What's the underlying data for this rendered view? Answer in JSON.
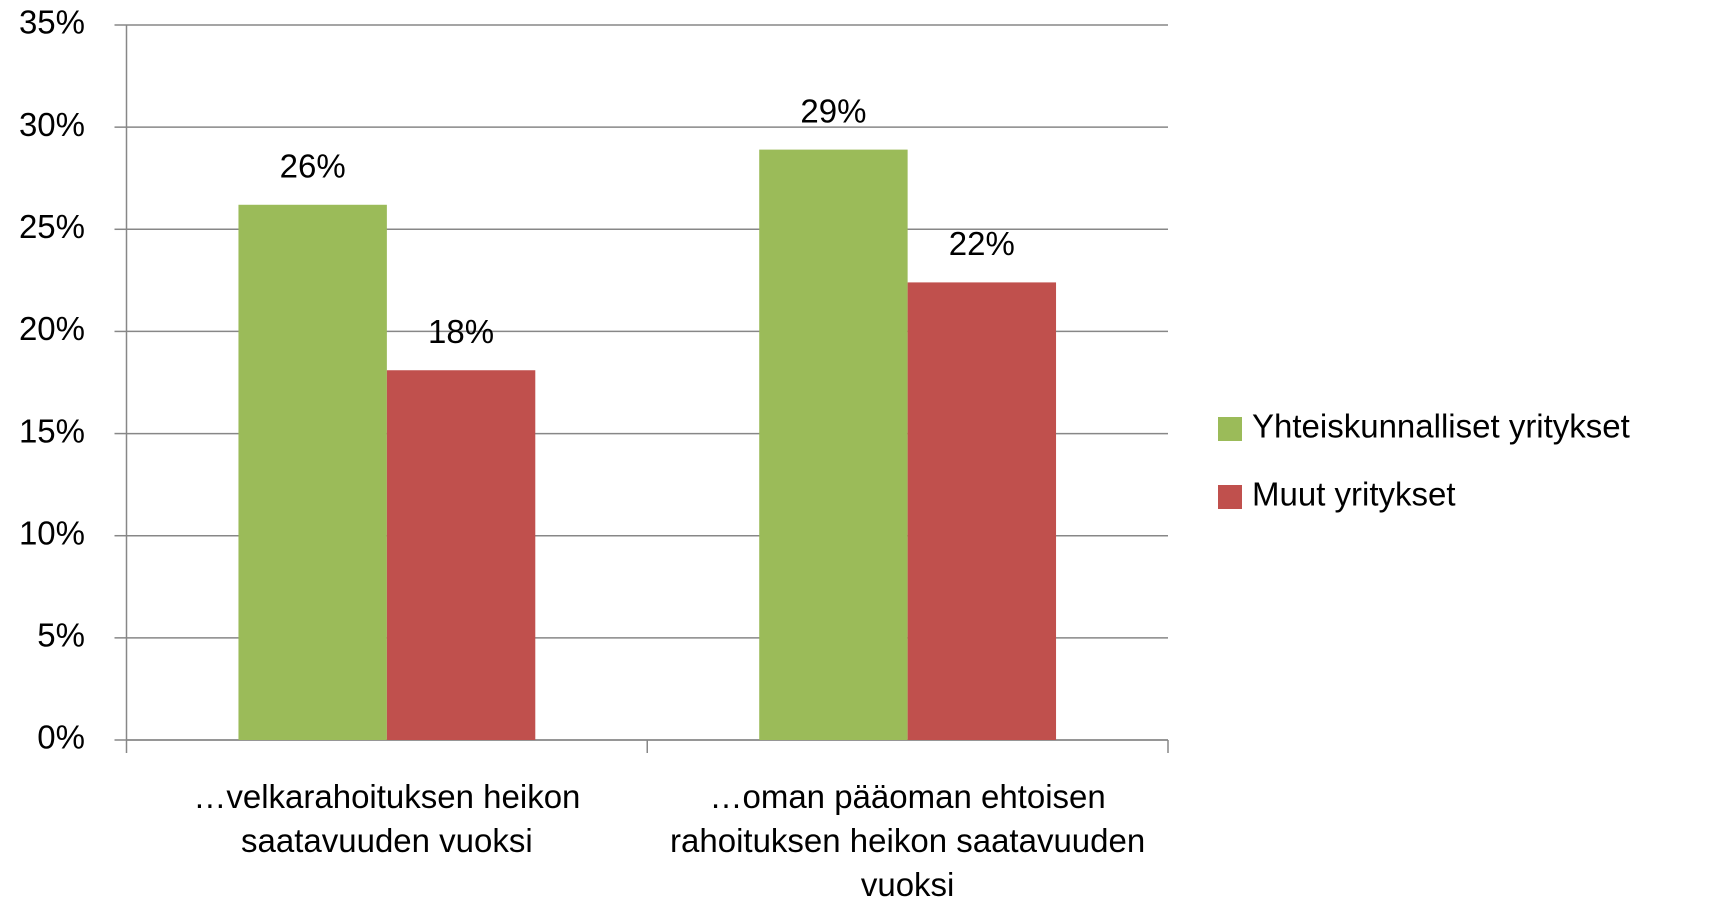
{
  "chart_data": {
    "type": "bar",
    "categories": [
      "…velkarahoituksen heikon saatavuuden vuoksi",
      "…oman pääoman ehtoisen rahoituksen heikon saatavuuden vuoksi"
    ],
    "series": [
      {
        "name": "Yhteiskunnalliset yritykset",
        "color": "#9bbb59",
        "values": [
          26.2,
          28.9
        ],
        "value_labels": [
          "26%",
          "29%"
        ]
      },
      {
        "name": "Muut yritykset",
        "color": "#c0504d",
        "values": [
          18.1,
          22.4
        ],
        "value_labels": [
          "18%",
          "22%"
        ]
      }
    ],
    "ylim": [
      0,
      35
    ],
    "yticks": [
      {
        "value": 0,
        "label": "0%"
      },
      {
        "value": 5,
        "label": "5%"
      },
      {
        "value": 10,
        "label": "10%"
      },
      {
        "value": 15,
        "label": "15%"
      },
      {
        "value": 20,
        "label": "20%"
      },
      {
        "value": 25,
        "label": "25%"
      },
      {
        "value": 30,
        "label": "30%"
      },
      {
        "value": 35,
        "label": "35%"
      }
    ],
    "grid": true,
    "legend": "right"
  }
}
